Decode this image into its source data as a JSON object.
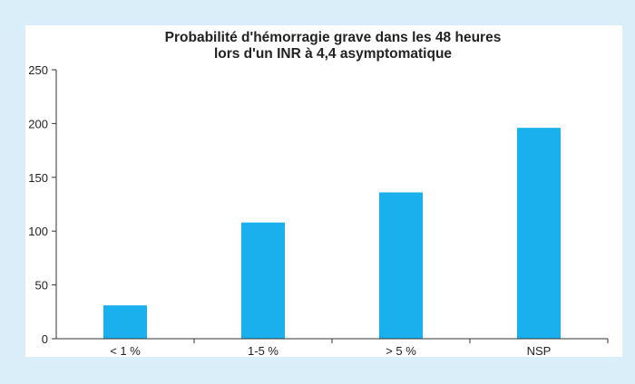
{
  "colors": {
    "page_background": "#daeef9",
    "panel": "#ffffff",
    "bar": "#1ab0ee",
    "axis": "#333333"
  },
  "chart_data": {
    "type": "bar",
    "title_lines": [
      "Probabilité d'hémorragie grave dans les 48 heures",
      "lors d'un INR à 4,4 asymptomatique"
    ],
    "categories": [
      "< 1 %",
      "1-5 %",
      "> 5 %",
      "NSP"
    ],
    "values": [
      31,
      108,
      136,
      196
    ],
    "ylim": [
      0,
      250
    ],
    "yticks": [
      0,
      50,
      100,
      150,
      200,
      250
    ],
    "grid": false,
    "legend": "none"
  }
}
